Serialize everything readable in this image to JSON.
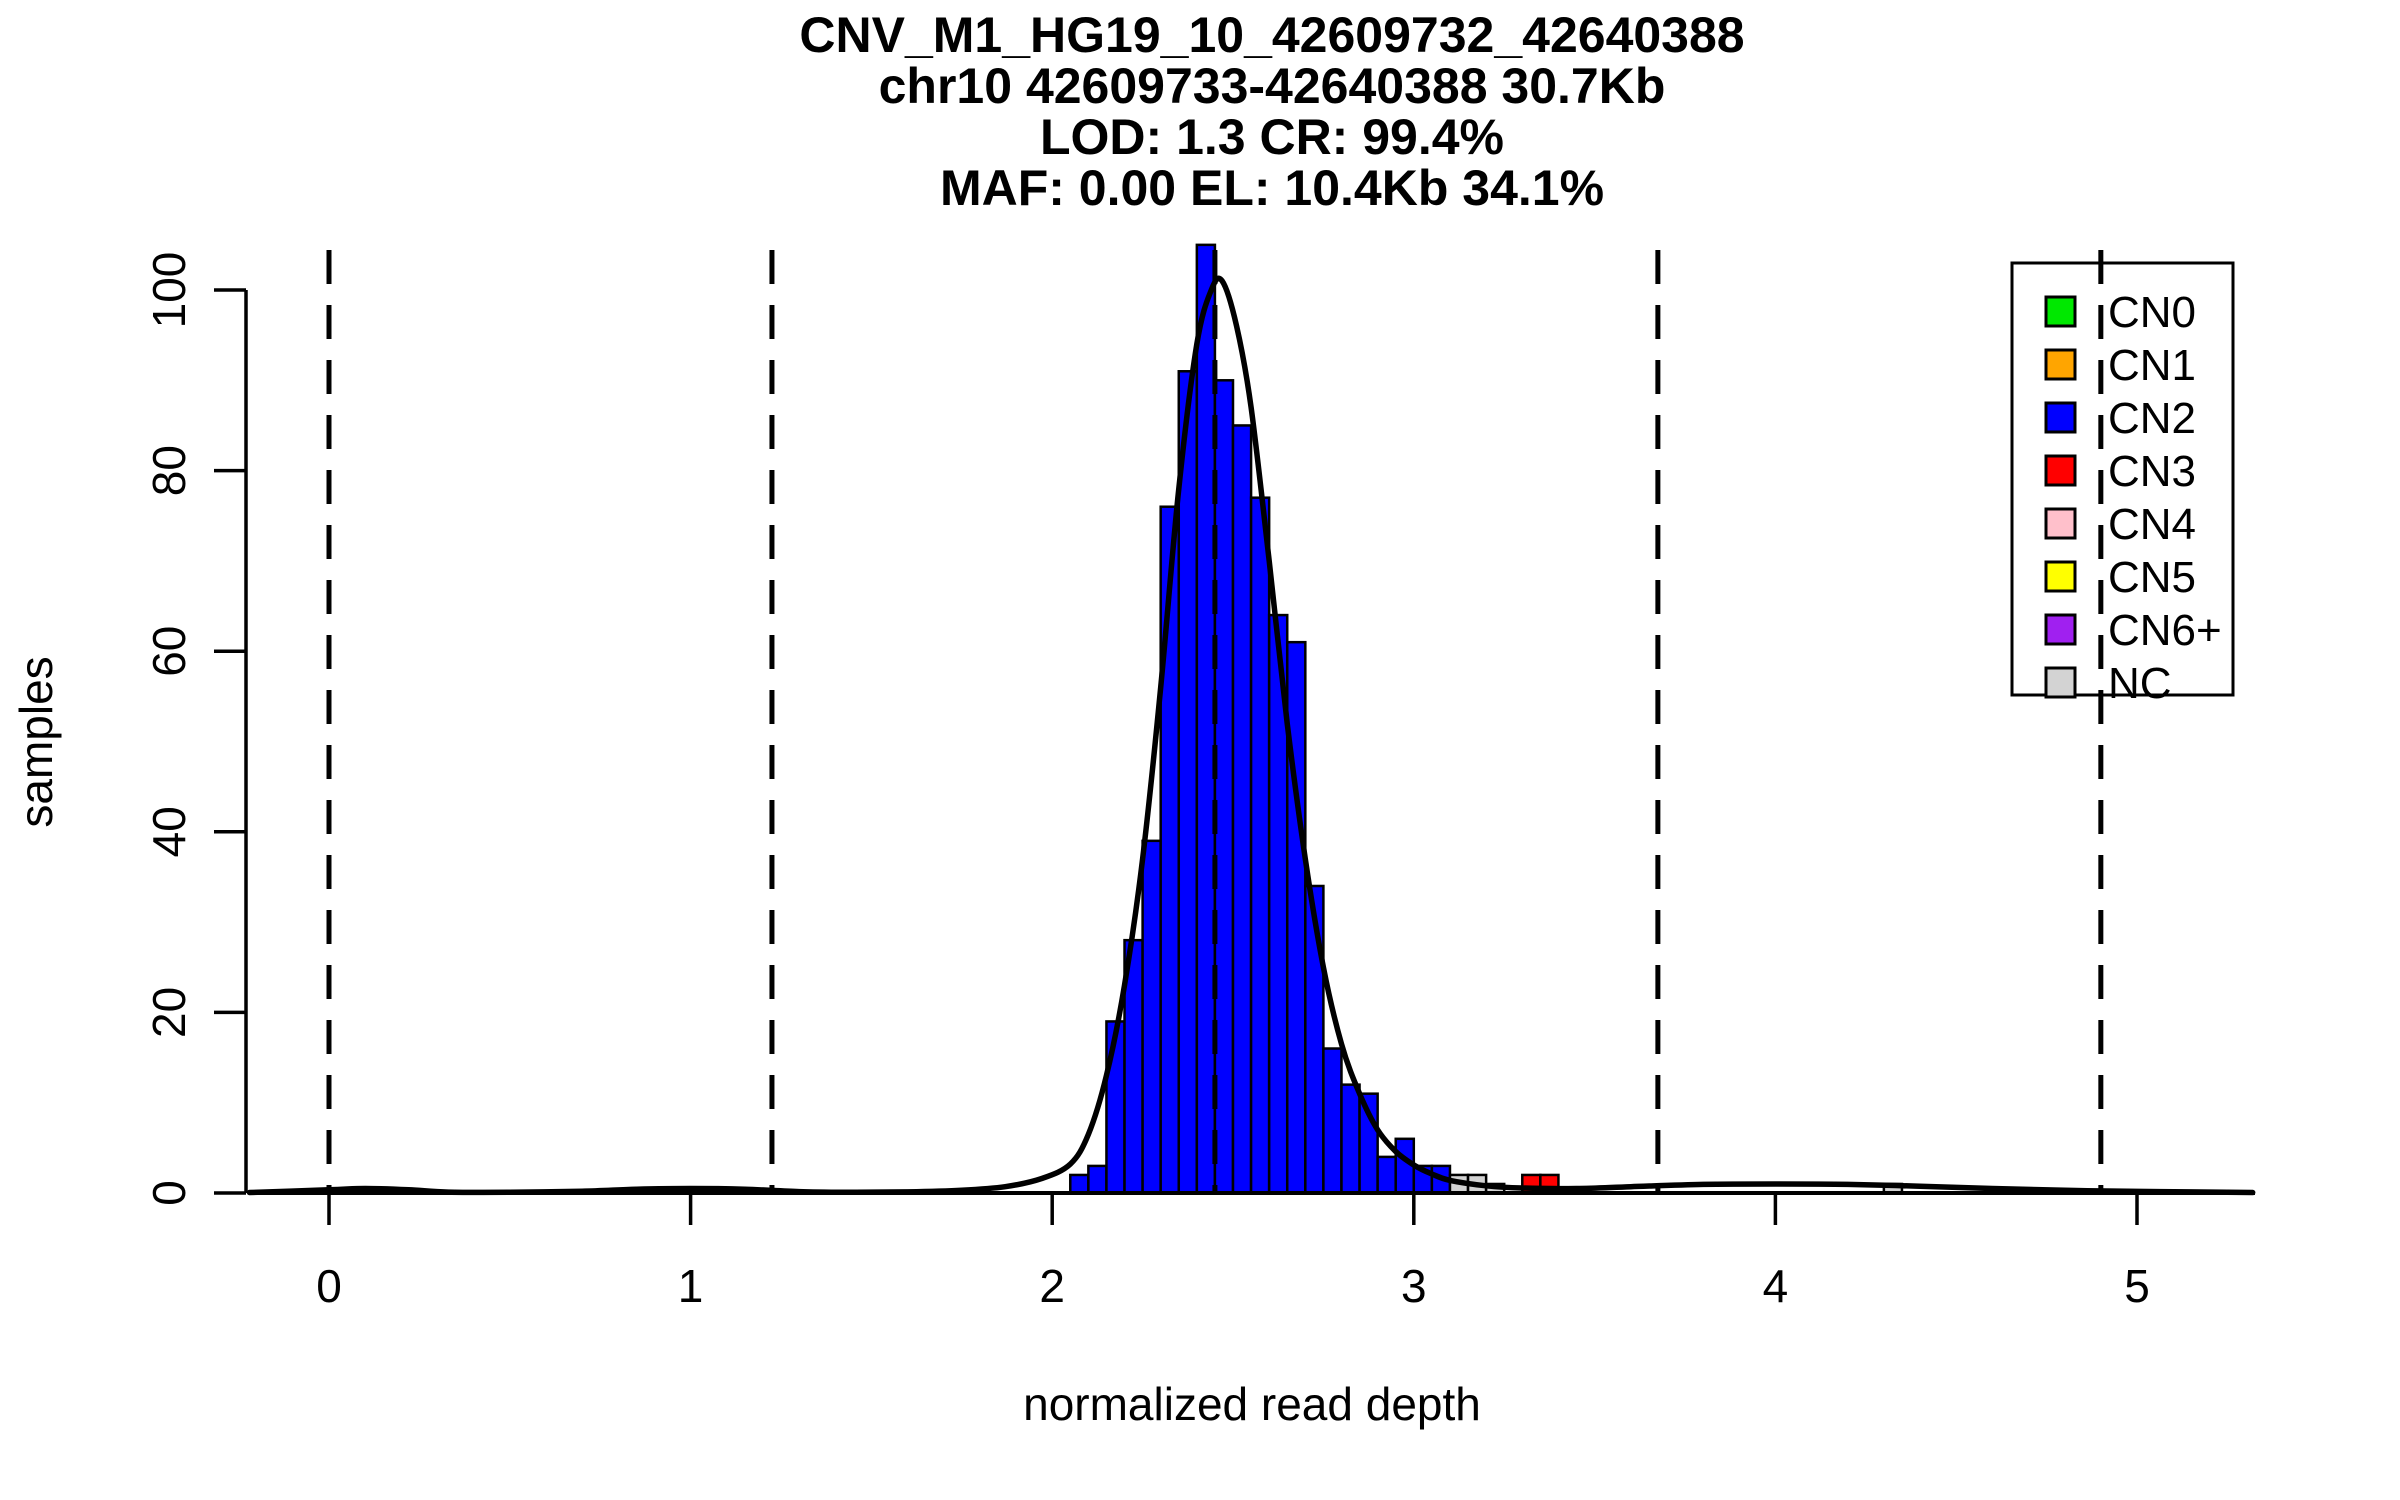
{
  "title": {
    "line1": "CNV_M1_HG19_10_42609732_42640388",
    "line2": "chr10 42609733-42640388 30.7Kb",
    "line3": "LOD: 1.3 CR: 99.4%",
    "line4": "MAF: 0.00 EL: 10.4Kb 34.1%"
  },
  "axes": {
    "x_label": "normalized read depth",
    "y_label": "samples",
    "x_ticks": [
      "0",
      "1",
      "2",
      "3",
      "4",
      "5"
    ],
    "y_ticks": [
      "0",
      "20",
      "40",
      "60",
      "80",
      "100"
    ]
  },
  "legend": {
    "items": [
      {
        "label": "CN0",
        "color": "#00E800"
      },
      {
        "label": "CN1",
        "color": "#FFA500"
      },
      {
        "label": "CN2",
        "color": "#0000FF"
      },
      {
        "label": "CN3",
        "color": "#FF0000"
      },
      {
        "label": "CN4",
        "color": "#FFC0CB"
      },
      {
        "label": "CN5",
        "color": "#FFFF00"
      },
      {
        "label": "CN6+",
        "color": "#A020F0"
      },
      {
        "label": "NC",
        "color": "#D3D3D3"
      }
    ]
  },
  "chart_data": {
    "type": "bar",
    "subtype": "histogram-with-density",
    "title": "CNV_M1_HG19_10_42609732_42640388 | chr10 42609733-42640388 30.7Kb | LOD: 1.3 CR: 99.4% | MAF: 0.00 EL: 10.4Kb 34.1%",
    "xlabel": "normalized read depth",
    "ylabel": "samples",
    "xlim": [
      -0.22,
      5.33
    ],
    "ylim": [
      0,
      105
    ],
    "x_ticks": [
      0,
      1,
      2,
      3,
      4,
      5
    ],
    "y_ticks": [
      0,
      20,
      40,
      60,
      80,
      100
    ],
    "grid": false,
    "legend_position": "top-right",
    "bin_width": 0.05,
    "bars": [
      {
        "x": 2.05,
        "count": 2,
        "cn": "CN2"
      },
      {
        "x": 2.1,
        "count": 3,
        "cn": "CN2"
      },
      {
        "x": 2.15,
        "count": 19,
        "cn": "CN2"
      },
      {
        "x": 2.2,
        "count": 28,
        "cn": "CN2"
      },
      {
        "x": 2.25,
        "count": 39,
        "cn": "CN2"
      },
      {
        "x": 2.3,
        "count": 76,
        "cn": "CN2"
      },
      {
        "x": 2.35,
        "count": 91,
        "cn": "CN2"
      },
      {
        "x": 2.4,
        "count": 105,
        "cn": "CN2"
      },
      {
        "x": 2.45,
        "count": 90,
        "cn": "CN2"
      },
      {
        "x": 2.5,
        "count": 85,
        "cn": "CN2"
      },
      {
        "x": 2.55,
        "count": 77,
        "cn": "CN2"
      },
      {
        "x": 2.6,
        "count": 64,
        "cn": "CN2"
      },
      {
        "x": 2.65,
        "count": 61,
        "cn": "CN2"
      },
      {
        "x": 2.7,
        "count": 34,
        "cn": "CN2"
      },
      {
        "x": 2.75,
        "count": 16,
        "cn": "CN2"
      },
      {
        "x": 2.8,
        "count": 12,
        "cn": "CN2"
      },
      {
        "x": 2.85,
        "count": 11,
        "cn": "CN2"
      },
      {
        "x": 2.9,
        "count": 4,
        "cn": "CN2"
      },
      {
        "x": 2.95,
        "count": 6,
        "cn": "CN2"
      },
      {
        "x": 3.0,
        "count": 3,
        "cn": "CN2"
      },
      {
        "x": 3.05,
        "count": 3,
        "cn": "CN2"
      },
      {
        "x": 3.1,
        "count": 2,
        "cn": "NC"
      },
      {
        "x": 3.15,
        "count": 2,
        "cn": "NC"
      },
      {
        "x": 3.2,
        "count": 1,
        "cn": "NC"
      },
      {
        "x": 3.3,
        "count": 2,
        "cn": "CN3"
      },
      {
        "x": 3.35,
        "count": 2,
        "cn": "CN3"
      },
      {
        "x": 3.4,
        "count": 0.5,
        "cn": "CN3"
      },
      {
        "x": 4.3,
        "count": 1,
        "cn": "NC"
      }
    ],
    "cn_colors": {
      "CN0": "#00E800",
      "CN1": "#FFA500",
      "CN2": "#0000FF",
      "CN3": "#FF0000",
      "CN4": "#FFC0CB",
      "CN5": "#FFFF00",
      "CN6+": "#A020F0",
      "NC": "#D3D3D3"
    },
    "dashed_vlines_x": [
      0,
      1.225,
      2.45,
      3.675,
      4.9
    ],
    "density_curve": [
      [
        -0.22,
        0.05
      ],
      [
        0.0,
        0.35
      ],
      [
        0.1,
        0.5
      ],
      [
        0.22,
        0.35
      ],
      [
        0.33,
        0.1
      ],
      [
        0.5,
        0.08
      ],
      [
        0.7,
        0.2
      ],
      [
        0.85,
        0.42
      ],
      [
        1.0,
        0.5
      ],
      [
        1.15,
        0.42
      ],
      [
        1.3,
        0.15
      ],
      [
        1.45,
        0.08
      ],
      [
        1.6,
        0.12
      ],
      [
        1.75,
        0.3
      ],
      [
        1.87,
        0.7
      ],
      [
        1.97,
        1.6
      ],
      [
        2.05,
        3.2
      ],
      [
        2.1,
        6.5
      ],
      [
        2.15,
        13
      ],
      [
        2.2,
        23
      ],
      [
        2.25,
        37
      ],
      [
        2.3,
        56
      ],
      [
        2.35,
        78
      ],
      [
        2.4,
        94
      ],
      [
        2.44,
        100
      ],
      [
        2.47,
        101
      ],
      [
        2.51,
        96
      ],
      [
        2.55,
        87
      ],
      [
        2.6,
        70
      ],
      [
        2.65,
        52
      ],
      [
        2.7,
        37
      ],
      [
        2.75,
        25
      ],
      [
        2.8,
        16.5
      ],
      [
        2.85,
        11
      ],
      [
        2.9,
        7
      ],
      [
        2.95,
        4.6
      ],
      [
        3.0,
        3.1
      ],
      [
        3.05,
        2.1
      ],
      [
        3.1,
        1.4
      ],
      [
        3.2,
        0.8
      ],
      [
        3.3,
        0.55
      ],
      [
        3.45,
        0.5
      ],
      [
        3.6,
        0.7
      ],
      [
        3.8,
        0.95
      ],
      [
        4.0,
        1.0
      ],
      [
        4.2,
        0.95
      ],
      [
        4.4,
        0.75
      ],
      [
        4.6,
        0.5
      ],
      [
        4.8,
        0.3
      ],
      [
        5.0,
        0.18
      ],
      [
        5.32,
        0.06
      ]
    ]
  }
}
